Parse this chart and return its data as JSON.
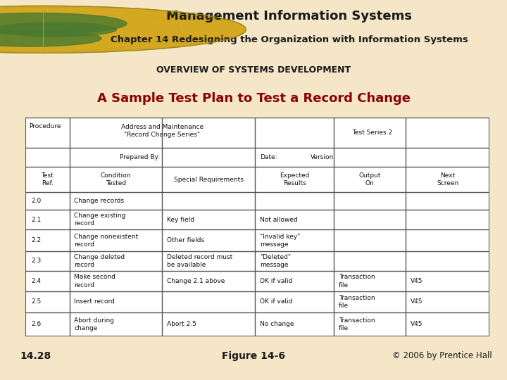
{
  "title": "Management Information Systems",
  "subtitle": "Chapter 14 Redesigning the Organization with Information Systems",
  "section": "OVERVIEW OF SYSTEMS DEVELOPMENT",
  "slide_title": "A Sample Test Plan to Test a Record Change",
  "figure_label": "Figure 14-6",
  "slide_num": "14.28",
  "copyright": "© 2006 by Prentice Hall",
  "bg_color": "#f5e6c8",
  "content_bg": "#ffffff",
  "title_color": "#1a1a1a",
  "slide_title_color": "#8b0000",
  "header_line_color": "#c8a850",
  "table_border_color": "#555555",
  "data_rows": [
    [
      "2.0",
      "Change records",
      "",
      "",
      "",
      ""
    ],
    [
      "2.1",
      "Change existing\nrecord",
      "Key field",
      "Not allowed",
      "",
      ""
    ],
    [
      "2.2",
      "Change nonexistent\nrecord",
      "Other fields",
      "\"Invalid key\"\nmessage",
      "",
      ""
    ],
    [
      "2.3",
      "Change deleted\nrecord",
      "Deleted record must\nbe available",
      "\"Deleted\"\nmessage",
      "",
      ""
    ],
    [
      "2.4",
      "Make second\nrecord",
      "Change 2.1 above",
      "OK if valid",
      "Transaction\nfile",
      "V45"
    ],
    [
      "2.5",
      "Insert record",
      "",
      "OK if valid",
      "Transaction\nfile",
      "V45"
    ],
    [
      "2.6",
      "Abort during\nchange",
      "Abort 2.5",
      "No change",
      "Transaction\nfile",
      "V45"
    ]
  ]
}
